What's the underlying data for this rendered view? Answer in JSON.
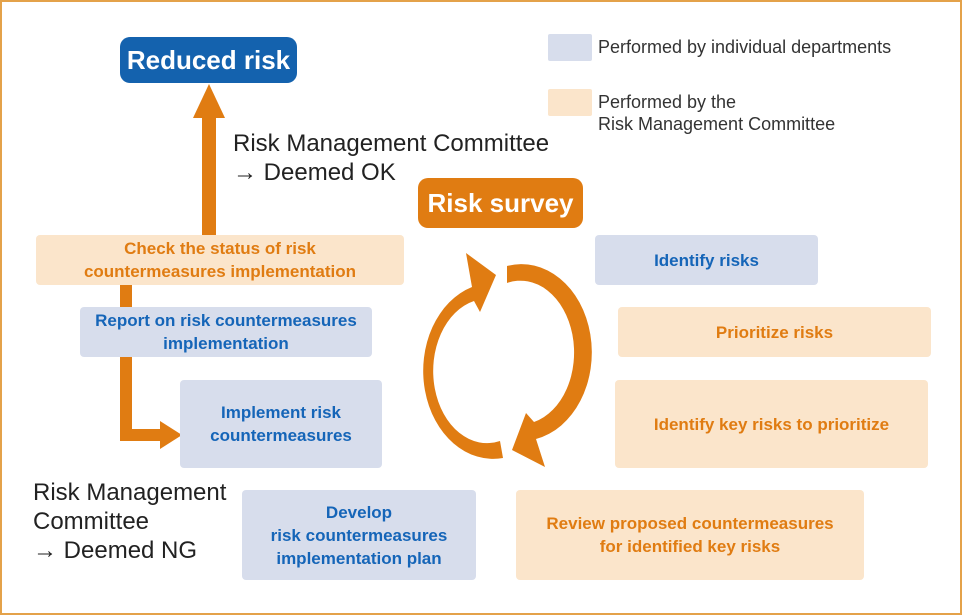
{
  "title_node": {
    "label": "Reduced risk"
  },
  "survey_node": {
    "label": "Risk survey"
  },
  "note_ok": {
    "text": "Risk Management Committee\n→ Deemed OK"
  },
  "note_ng": {
    "text": "Risk Management\nCommittee\n→ Deemed NG"
  },
  "legend": {
    "departments": "Performed by individual departments",
    "committee": "Performed by the\nRisk Management Committee",
    "departments_color": "#d7ddec",
    "committee_color": "#fbe5cb"
  },
  "steps": {
    "check_status": "Check the status of risk\ncountermeasures implementation",
    "report": "Report on risk countermeasures\nimplementation",
    "implement": "Implement risk\ncountermeasures",
    "develop": "Develop\nrisk countermeasures\nimplementation plan",
    "identify": "Identify risks",
    "prioritize": "Prioritize risks",
    "identify_key": "Identify key risks to prioritize",
    "review": "Review proposed countermeasures\nfor identified key risks"
  },
  "colors": {
    "accent_blue": "#1565b8",
    "accent_orange": "#e07c12",
    "frame": "#e4a24a"
  }
}
